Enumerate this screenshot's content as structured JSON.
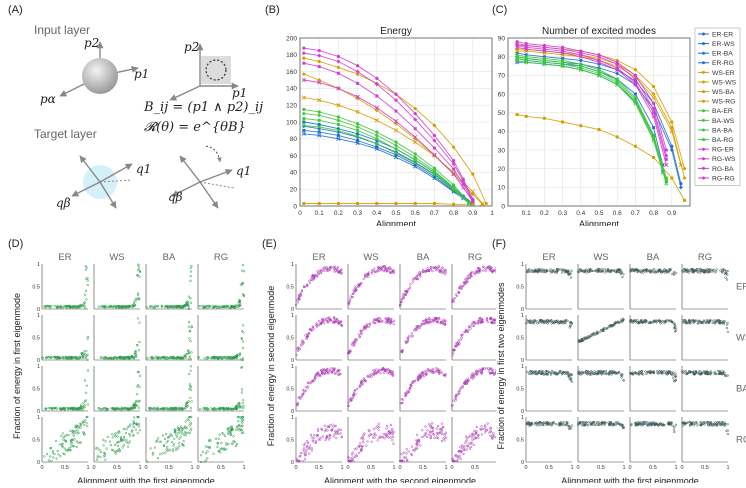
{
  "panels": {
    "a": {
      "letter": "(A)",
      "input_layer_label": "Input layer",
      "target_layer_label": "Target layer",
      "formula_b": "B_ij = (p1 ∧ p2)_ij",
      "formula_r": "𝓡(θ) = e^{θB}",
      "vec_labels": {
        "p1": "p1",
        "p2": "p2",
        "palpha": "pα",
        "q1": "q1",
        "qbeta": "qβ"
      }
    },
    "b": {
      "letter": "(B)"
    },
    "c": {
      "letter": "(C)"
    },
    "d": {
      "letter": "(D)",
      "ylabel": "Fraction of energy in first eigenmode",
      "xlabel": "Alignment with the first eigenmode",
      "color": "#2e9e4a"
    },
    "e": {
      "letter": "(E)",
      "ylabel": "Fraction of energy in second eigenmode",
      "xlabel": "Alignment with the second eigenmode",
      "color": "#b040b8"
    },
    "f": {
      "letter": "(F)",
      "ylabel": "Fraction of energy in first two eigenmodes",
      "xlabel": "Alignment with the first eigenmode",
      "color": "#3f5a5a"
    }
  },
  "grid_labels": {
    "cols": [
      "ER",
      "WS",
      "BA",
      "RG"
    ],
    "rows": [
      "ER",
      "WS",
      "BA",
      "RG"
    ],
    "xticks": [
      "0",
      "0.5",
      "1"
    ],
    "yticks": [
      "0",
      "0.5",
      "1"
    ]
  },
  "series_colors": {
    "ER-ER": "#1f6fd0",
    "ER-WS": "#1f6fd0",
    "ER-BA": "#1f6fd0",
    "ER-RG": "#1f6fd0",
    "WS-ER": "#d4a000",
    "WS-WS": "#d4a000",
    "WS-BA": "#d4a000",
    "WS-RG": "#d4a000",
    "BA-ER": "#3cc83c",
    "BA-WS": "#3cc83c",
    "BA-BA": "#3cc83c",
    "BA-RG": "#3cc83c",
    "RG-ER": "#d23cd2",
    "RG-WS": "#d23cd2",
    "RG-BA": "#d23cd2",
    "RG-RG": "#d23cd2"
  },
  "chart_data": [
    {
      "id": "energy",
      "type": "line",
      "title": "Energy",
      "xlabel": "Alignment",
      "ylabel": "",
      "xlim": [
        0,
        1
      ],
      "ylim": [
        0,
        200
      ],
      "xticks": [
        0,
        0.1,
        0.2,
        0.3,
        0.4,
        0.5,
        0.6,
        0.7,
        0.8,
        0.9,
        1
      ],
      "yticks": [
        0,
        20,
        40,
        60,
        80,
        100,
        120,
        140,
        160,
        180,
        200
      ],
      "grid": true,
      "series": [
        {
          "name": "ER-ER",
          "x": [
            0.02,
            0.1,
            0.2,
            0.3,
            0.4,
            0.5,
            0.6,
            0.7,
            0.8,
            0.85,
            0.9
          ],
          "y": [
            100,
            97,
            92,
            86,
            78,
            68,
            55,
            40,
            22,
            12,
            3
          ]
        },
        {
          "name": "ER-WS",
          "x": [
            0.02,
            0.1,
            0.2,
            0.3,
            0.4,
            0.5,
            0.6,
            0.7,
            0.8,
            0.85,
            0.9
          ],
          "y": [
            95,
            92,
            88,
            82,
            74,
            64,
            52,
            38,
            20,
            11,
            2
          ]
        },
        {
          "name": "ER-BA",
          "x": [
            0.02,
            0.1,
            0.2,
            0.3,
            0.4,
            0.5,
            0.6,
            0.7,
            0.8,
            0.85,
            0.9
          ],
          "y": [
            90,
            88,
            84,
            78,
            70,
            61,
            49,
            35,
            18,
            10,
            2
          ]
        },
        {
          "name": "ER-RG",
          "x": [
            0.02,
            0.1,
            0.2,
            0.3,
            0.4,
            0.5,
            0.6,
            0.7,
            0.8,
            0.85,
            0.9
          ],
          "y": [
            86,
            84,
            80,
            75,
            68,
            58,
            47,
            33,
            17,
            9,
            2
          ]
        },
        {
          "name": "WS-ER",
          "x": [
            0.02,
            0.1,
            0.2,
            0.3,
            0.4,
            0.5,
            0.6,
            0.7,
            0.8,
            0.9,
            0.97
          ],
          "y": [
            176,
            172,
            165,
            157,
            146,
            133,
            116,
            96,
            70,
            38,
            3
          ]
        },
        {
          "name": "WS-WS",
          "x": [
            0.02,
            0.1,
            0.2,
            0.3,
            0.4,
            0.5,
            0.6,
            0.7,
            0.8,
            0.9,
            0.95
          ],
          "y": [
            157,
            150,
            140,
            128,
            114,
            98,
            80,
            60,
            38,
            14,
            2
          ]
        },
        {
          "name": "WS-BA",
          "x": [
            0.02,
            0.1,
            0.2,
            0.3,
            0.4,
            0.5,
            0.6,
            0.7,
            0.8,
            0.9
          ],
          "y": [
            3,
            3,
            3,
            3,
            3,
            3,
            3,
            3,
            2,
            2
          ]
        },
        {
          "name": "WS-RG",
          "x": [
            0.02,
            0.1,
            0.2,
            0.3,
            0.4,
            0.5,
            0.6,
            0.7,
            0.8,
            0.9,
            0.95
          ],
          "y": [
            129,
            126,
            120,
            112,
            102,
            90,
            76,
            60,
            40,
            17,
            3
          ]
        },
        {
          "name": "BA-ER",
          "x": [
            0.02,
            0.1,
            0.2,
            0.3,
            0.4,
            0.5,
            0.6,
            0.7,
            0.8,
            0.88
          ],
          "y": [
            115,
            112,
            106,
            98,
            88,
            76,
            62,
            45,
            25,
            4
          ]
        },
        {
          "name": "BA-WS",
          "x": [
            0.02,
            0.1,
            0.2,
            0.3,
            0.4,
            0.5,
            0.6,
            0.7,
            0.8,
            0.88
          ],
          "y": [
            110,
            108,
            102,
            94,
            84,
            72,
            58,
            42,
            22,
            3
          ]
        },
        {
          "name": "BA-BA",
          "x": [
            0.02,
            0.1,
            0.2,
            0.3,
            0.4,
            0.5,
            0.6,
            0.7,
            0.8,
            0.88
          ],
          "y": [
            104,
            102,
            97,
            90,
            80,
            68,
            55,
            40,
            21,
            3
          ]
        },
        {
          "name": "BA-RG",
          "x": [
            0.02,
            0.1,
            0.2,
            0.3,
            0.4,
            0.5,
            0.6,
            0.7,
            0.8,
            0.88
          ],
          "y": [
            96,
            94,
            90,
            83,
            74,
            63,
            51,
            37,
            19,
            3
          ]
        },
        {
          "name": "RG-ER",
          "x": [
            0.02,
            0.1,
            0.2,
            0.3,
            0.4,
            0.5,
            0.6,
            0.7,
            0.8,
            0.85,
            0.9
          ],
          "y": [
            188,
            185,
            178,
            167,
            152,
            133,
            110,
            84,
            54,
            32,
            8
          ]
        },
        {
          "name": "RG-WS",
          "x": [
            0.02,
            0.1,
            0.2,
            0.3,
            0.4,
            0.5,
            0.6,
            0.7,
            0.8,
            0.85,
            0.9
          ],
          "y": [
            182,
            179,
            172,
            160,
            145,
            126,
            103,
            78,
            50,
            30,
            7
          ]
        },
        {
          "name": "RG-BA",
          "x": [
            0.02,
            0.1,
            0.2,
            0.3,
            0.4,
            0.5,
            0.6,
            0.7,
            0.8,
            0.85,
            0.9
          ],
          "y": [
            170,
            166,
            158,
            146,
            131,
            113,
            92,
            69,
            44,
            26,
            6
          ]
        },
        {
          "name": "RG-RG",
          "x": [
            0.02,
            0.1,
            0.2,
            0.3,
            0.4,
            0.5,
            0.6,
            0.7,
            0.8,
            0.85,
            0.9
          ],
          "y": [
            150,
            147,
            140,
            130,
            117,
            101,
            82,
            61,
            38,
            22,
            5
          ]
        }
      ]
    },
    {
      "id": "modes",
      "type": "line",
      "title": "Number of excited modes",
      "xlabel": "Alignment",
      "ylabel": "",
      "xlim": [
        0,
        1
      ],
      "ylim": [
        0,
        90
      ],
      "xticks": [
        0.1,
        0.2,
        0.3,
        0.4,
        0.5,
        0.6,
        0.7,
        0.8,
        0.9
      ],
      "yticks": [
        0,
        10,
        20,
        30,
        40,
        50,
        60,
        70,
        80,
        90
      ],
      "grid": true,
      "legend": "right",
      "series": [
        {
          "name": "ER-ER",
          "x": [
            0.05,
            0.1,
            0.2,
            0.3,
            0.4,
            0.5,
            0.6,
            0.7,
            0.8,
            0.9,
            0.95
          ],
          "y": [
            82,
            81,
            80,
            79,
            78,
            76,
            73,
            67,
            55,
            32,
            12
          ]
        },
        {
          "name": "ER-WS",
          "x": [
            0.05,
            0.1,
            0.2,
            0.3,
            0.4,
            0.5,
            0.6,
            0.7,
            0.8,
            0.9,
            0.95
          ],
          "y": [
            80,
            79,
            78,
            77,
            76,
            74,
            71,
            65,
            52,
            30,
            10
          ]
        },
        {
          "name": "ER-BA",
          "x": [
            0.05,
            0.1,
            0.2,
            0.3,
            0.4,
            0.5,
            0.6,
            0.7,
            0.8,
            0.85
          ],
          "y": [
            79,
            78,
            77,
            76,
            75,
            72,
            68,
            60,
            42,
            22
          ]
        },
        {
          "name": "ER-RG",
          "x": [
            0.05,
            0.1,
            0.2,
            0.3,
            0.4,
            0.5,
            0.6,
            0.7,
            0.8,
            0.85
          ],
          "y": [
            77,
            77,
            76,
            75,
            73,
            70,
            65,
            56,
            38,
            18
          ]
        },
        {
          "name": "WS-ER",
          "x": [
            0.05,
            0.1,
            0.2,
            0.3,
            0.4,
            0.5,
            0.6,
            0.7,
            0.8,
            0.9,
            0.97
          ],
          "y": [
            86,
            86,
            85,
            84,
            83,
            81,
            78,
            73,
            64,
            45,
            20
          ]
        },
        {
          "name": "WS-WS",
          "x": [
            0.05,
            0.1,
            0.2,
            0.3,
            0.4,
            0.5,
            0.6,
            0.7,
            0.8,
            0.9,
            0.97
          ],
          "y": [
            84,
            84,
            83,
            82,
            81,
            79,
            76,
            70,
            60,
            42,
            15
          ]
        },
        {
          "name": "WS-BA",
          "x": [
            0.05,
            0.1,
            0.2,
            0.3,
            0.4,
            0.5,
            0.6,
            0.7,
            0.8,
            0.9,
            0.97
          ],
          "y": [
            49,
            48,
            47,
            45,
            43,
            41,
            37,
            32,
            26,
            15,
            3
          ]
        },
        {
          "name": "WS-RG",
          "x": [
            0.05,
            0.1,
            0.2,
            0.3,
            0.4,
            0.5,
            0.6,
            0.7,
            0.8,
            0.9,
            0.95
          ],
          "y": [
            83,
            83,
            82,
            81,
            80,
            78,
            75,
            69,
            58,
            40,
            22
          ]
        },
        {
          "name": "BA-ER",
          "x": [
            0.05,
            0.1,
            0.2,
            0.3,
            0.4,
            0.5,
            0.6,
            0.7,
            0.8,
            0.87
          ],
          "y": [
            81,
            80,
            79,
            78,
            76,
            73,
            68,
            58,
            38,
            15
          ]
        },
        {
          "name": "BA-WS",
          "x": [
            0.05,
            0.1,
            0.2,
            0.3,
            0.4,
            0.5,
            0.6,
            0.7,
            0.8,
            0.87
          ],
          "y": [
            80,
            79,
            78,
            77,
            75,
            72,
            67,
            57,
            37,
            14
          ]
        },
        {
          "name": "BA-BA",
          "x": [
            0.05,
            0.1,
            0.2,
            0.3,
            0.4,
            0.5,
            0.6,
            0.7,
            0.8,
            0.87
          ],
          "y": [
            79,
            78,
            77,
            76,
            74,
            71,
            66,
            56,
            36,
            13
          ]
        },
        {
          "name": "BA-RG",
          "x": [
            0.05,
            0.1,
            0.2,
            0.3,
            0.4,
            0.5,
            0.6,
            0.7,
            0.8,
            0.87
          ],
          "y": [
            78,
            77,
            76,
            75,
            73,
            70,
            65,
            55,
            35,
            12
          ]
        },
        {
          "name": "RG-ER",
          "x": [
            0.05,
            0.1,
            0.2,
            0.3,
            0.4,
            0.5,
            0.6,
            0.7,
            0.8,
            0.87
          ],
          "y": [
            88,
            87,
            86,
            85,
            83,
            81,
            77,
            70,
            55,
            30
          ]
        },
        {
          "name": "RG-WS",
          "x": [
            0.05,
            0.1,
            0.2,
            0.3,
            0.4,
            0.5,
            0.6,
            0.7,
            0.8,
            0.87
          ],
          "y": [
            87,
            86,
            85,
            84,
            82,
            80,
            76,
            68,
            52,
            27
          ]
        },
        {
          "name": "RG-BA",
          "x": [
            0.05,
            0.1,
            0.2,
            0.3,
            0.4,
            0.5,
            0.6,
            0.7,
            0.8,
            0.87
          ],
          "y": [
            86,
            85,
            84,
            83,
            81,
            78,
            74,
            66,
            50,
            25
          ]
        },
        {
          "name": "RG-RG",
          "x": [
            0.05,
            0.1,
            0.2,
            0.3,
            0.4,
            0.5,
            0.6,
            0.7,
            0.8,
            0.87
          ],
          "y": [
            85,
            84,
            83,
            82,
            80,
            77,
            73,
            65,
            48,
            22
          ]
        }
      ]
    },
    {
      "id": "scatter-d",
      "type": "scatter",
      "title": "",
      "xlabel": "Alignment with the first eigenmode",
      "ylabel": "Fraction of energy in first eigenmode",
      "rows": [
        "ER",
        "WS",
        "BA",
        "RG"
      ],
      "cols": [
        "ER",
        "WS",
        "BA",
        "RG"
      ],
      "xlim": [
        0,
        1
      ],
      "ylim": [
        0,
        1
      ],
      "shape": "near-zero fraction across alignment, jumping toward 1 near alignment 1; RG rows broadly spread"
    },
    {
      "id": "scatter-e",
      "type": "scatter",
      "title": "",
      "xlabel": "Alignment with the second eigenmode",
      "ylabel": "Fraction of energy in second eigenmode",
      "rows": [
        "ER",
        "WS",
        "BA",
        "RG"
      ],
      "cols": [
        "ER",
        "WS",
        "BA",
        "RG"
      ],
      "xlim": [
        0,
        1
      ],
      "ylim": [
        0,
        1
      ],
      "shape": "arching bands peaking near 0.7-0.9"
    },
    {
      "id": "scatter-f",
      "type": "scatter",
      "title": "",
      "xlabel": "Alignment with the first eigenmode",
      "ylabel": "Fraction of energy in first two eigenmodes",
      "rows": [
        "ER",
        "WS",
        "BA",
        "RG"
      ],
      "cols": [
        "ER",
        "WS",
        "BA",
        "RG"
      ],
      "xlim": [
        0,
        1
      ],
      "ylim": [
        0,
        1
      ],
      "shape": "flat bands near 0.8-0.95 with drop near alignment 1"
    }
  ]
}
